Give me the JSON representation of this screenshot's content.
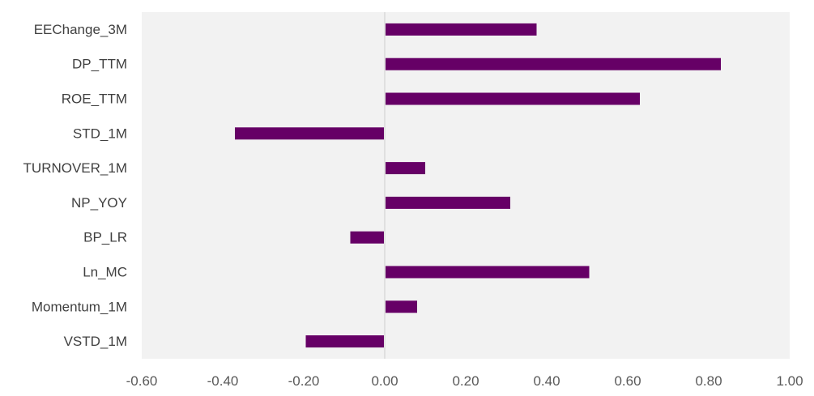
{
  "chart_data": {
    "type": "bar",
    "orientation": "horizontal",
    "categories": [
      "EEChange_3M",
      "DP_TTM",
      "ROE_TTM",
      "STD_1M",
      "TURNOVER_1M",
      "NP_YOY",
      "BP_LR",
      "Ln_MC",
      "Momentum_1M",
      "VSTD_1M"
    ],
    "values": [
      0.375,
      0.83,
      0.63,
      -0.37,
      0.1,
      0.31,
      -0.085,
      0.505,
      0.08,
      -0.195
    ],
    "xlim": [
      -0.6,
      1.0
    ],
    "xticks": [
      -0.6,
      -0.4,
      -0.2,
      0.0,
      0.2,
      0.4,
      0.6,
      0.8,
      1.0
    ],
    "xtick_labels": [
      "-0.60",
      "-0.40",
      "-0.20",
      "0.00",
      "0.20",
      "0.40",
      "0.60",
      "0.80",
      "1.00"
    ],
    "title": "",
    "xlabel": "",
    "ylabel": "",
    "grid": false,
    "legend": "none",
    "colors": {
      "bar": "#660066",
      "plot_background": "#f2f2f2",
      "zero_line": "#d9d9d9"
    }
  }
}
